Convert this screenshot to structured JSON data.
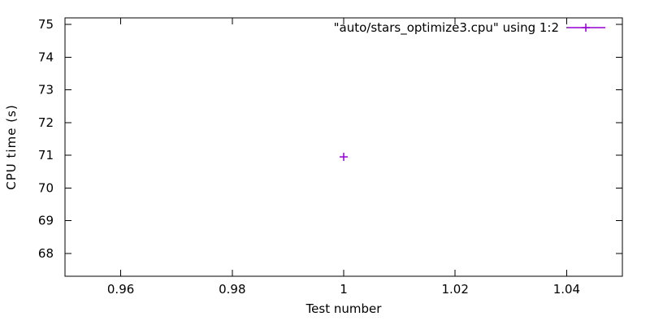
{
  "chart_data": {
    "type": "scatter",
    "title": "",
    "xlabel": "Test number",
    "ylabel": "CPU time (s)",
    "xlim": [
      0.95,
      1.05
    ],
    "ylim": [
      67.3,
      75.2
    ],
    "grid": false,
    "legend_position": "top-right",
    "xticks": {
      "values": [
        0.96,
        0.98,
        1.0,
        1.02,
        1.04
      ],
      "labels": [
        "0.96",
        "0.98",
        "1",
        "1.02",
        "1.04"
      ]
    },
    "yticks": {
      "values": [
        68,
        69,
        70,
        71,
        72,
        73,
        74,
        75
      ],
      "labels": [
        "68",
        "69",
        "70",
        "71",
        "72",
        "73",
        "74",
        "75"
      ]
    },
    "series": [
      {
        "name": "\"auto/stars_optimize3.cpu\" using 1:2",
        "marker": "plus",
        "style": "linespoints",
        "color": "#9400d3",
        "points": [
          {
            "x": 1.0,
            "y": 70.95
          }
        ]
      }
    ],
    "colors": {
      "axis": "#000000",
      "text": "#000000",
      "background": "#ffffff",
      "series_accent": "#9400d3"
    }
  }
}
